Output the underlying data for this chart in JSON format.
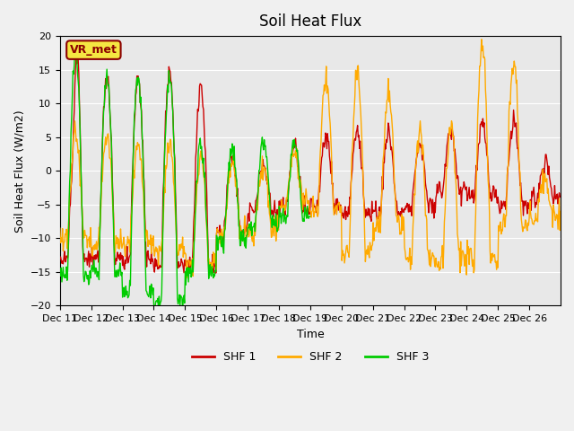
{
  "title": "Soil Heat Flux",
  "ylabel": "Soil Heat Flux (W/m2)",
  "xlabel": "Time",
  "ylim": [
    -20,
    20
  ],
  "yticks": [
    -20,
    -15,
    -10,
    -5,
    0,
    5,
    10,
    15,
    20
  ],
  "xtick_labels": [
    "Dec 11",
    "Dec 12",
    "Dec 13",
    "Dec 14",
    "Dec 15",
    "Dec 16",
    "Dec 17",
    "Dec 18",
    "Dec 19",
    "Dec 20",
    "Dec 21",
    "Dec 22",
    "Dec 23",
    "Dec 24",
    "Dec 25",
    "Dec 26"
  ],
  "colors": {
    "SHF 1": "#cc0000",
    "SHF 2": "#ffaa00",
    "SHF 3": "#00cc00"
  },
  "legend_labels": [
    "SHF 1",
    "SHF 2",
    "SHF 3"
  ],
  "bg_color": "#e8e8e8",
  "fig_color": "#f0f0f0",
  "watermark": "VR_met",
  "n_days": 16,
  "pts_per_day": 48
}
